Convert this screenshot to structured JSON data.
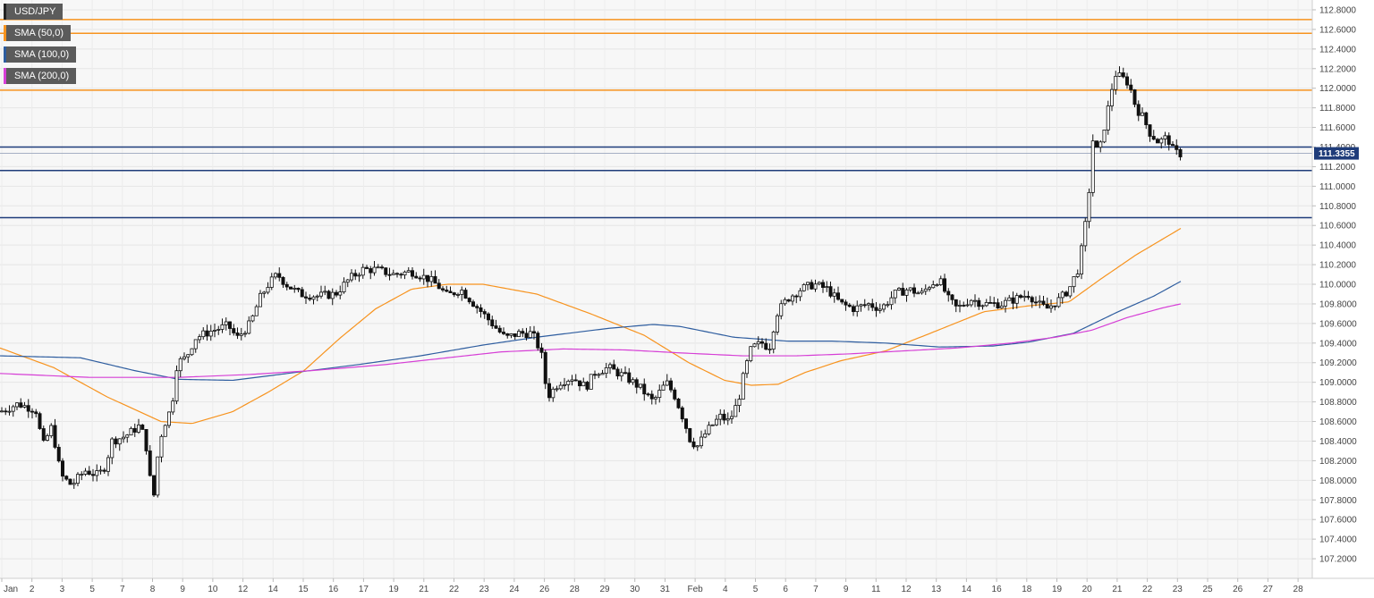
{
  "chart_data": {
    "type": "candlestick",
    "symbol": "USD/JPY",
    "legend": [
      {
        "label": "USD/JPY",
        "color": "#222222"
      },
      {
        "label": "SMA (50,0)",
        "color": "#f7931e"
      },
      {
        "label": "SMA (100,0)",
        "color": "#2e5d9f"
      },
      {
        "label": "SMA (200,0)",
        "color": "#d63fd6"
      }
    ],
    "ylim": [
      107.0,
      112.9
    ],
    "y_ticks": [
      "112.8000",
      "112.6000",
      "112.4000",
      "112.2000",
      "112.0000",
      "111.8000",
      "111.6000",
      "111.4000",
      "111.2000",
      "111.0000",
      "110.8000",
      "110.6000",
      "110.4000",
      "110.2000",
      "110.0000",
      "109.8000",
      "109.6000",
      "109.4000",
      "109.2000",
      "109.0000",
      "108.8000",
      "108.6000",
      "108.4000",
      "108.2000",
      "108.0000",
      "107.8000",
      "107.6000",
      "107.4000",
      "107.2000"
    ],
    "x_ticks": [
      "Jan",
      "2",
      "3",
      "5",
      "7",
      "8",
      "9",
      "10",
      "12",
      "14",
      "15",
      "16",
      "17",
      "19",
      "21",
      "22",
      "23",
      "24",
      "26",
      "28",
      "29",
      "30",
      "31",
      "Feb",
      "4",
      "5",
      "6",
      "7",
      "9",
      "11",
      "12",
      "13",
      "14",
      "16",
      "18",
      "19",
      "20",
      "21",
      "22",
      "23",
      "25",
      "26",
      "27",
      "28"
    ],
    "current_price": "111.3355",
    "current_price_color": "#1f3c7a",
    "horizontal_levels": [
      {
        "value": 112.7,
        "color": "#f7931e"
      },
      {
        "value": 112.56,
        "color": "#f7931e"
      },
      {
        "value": 111.98,
        "color": "#f7931e"
      },
      {
        "value": 111.4,
        "color": "#1f3c7a"
      },
      {
        "value": 111.16,
        "color": "#1f3c7a"
      },
      {
        "value": 110.68,
        "color": "#1f3c7a"
      }
    ],
    "price_path": [
      [
        0,
        108.7
      ],
      [
        20,
        108.78
      ],
      [
        40,
        108.72
      ],
      [
        48,
        108.35
      ],
      [
        58,
        108.55
      ],
      [
        68,
        108.05
      ],
      [
        80,
        107.95
      ],
      [
        95,
        108.1
      ],
      [
        110,
        108.05
      ],
      [
        118,
        108.15
      ],
      [
        125,
        108.4
      ],
      [
        140,
        108.45
      ],
      [
        155,
        108.55
      ],
      [
        162,
        108.45
      ],
      [
        168,
        108.0
      ],
      [
        172,
        107.85
      ],
      [
        178,
        108.4
      ],
      [
        185,
        108.6
      ],
      [
        192,
        108.75
      ],
      [
        198,
        109.2
      ],
      [
        208,
        109.25
      ],
      [
        218,
        109.45
      ],
      [
        235,
        109.52
      ],
      [
        255,
        109.58
      ],
      [
        265,
        109.45
      ],
      [
        280,
        109.6
      ],
      [
        290,
        109.85
      ],
      [
        300,
        110.0
      ],
      [
        310,
        110.1
      ],
      [
        320,
        110.0
      ],
      [
        335,
        109.9
      ],
      [
        355,
        109.88
      ],
      [
        375,
        109.9
      ],
      [
        390,
        110.05
      ],
      [
        405,
        110.15
      ],
      [
        420,
        110.15
      ],
      [
        440,
        110.1
      ],
      [
        460,
        110.13
      ],
      [
        480,
        110.05
      ],
      [
        490,
        109.98
      ],
      [
        500,
        109.88
      ],
      [
        515,
        109.95
      ],
      [
        525,
        109.85
      ],
      [
        540,
        109.7
      ],
      [
        555,
        109.55
      ],
      [
        565,
        109.45
      ],
      [
        580,
        109.5
      ],
      [
        595,
        109.5
      ],
      [
        605,
        109.3
      ],
      [
        612,
        108.85
      ],
      [
        625,
        109.0
      ],
      [
        640,
        109.05
      ],
      [
        655,
        108.95
      ],
      [
        665,
        109.1
      ],
      [
        680,
        109.15
      ],
      [
        700,
        109.05
      ],
      [
        715,
        108.95
      ],
      [
        730,
        108.8
      ],
      [
        745,
        109.0
      ],
      [
        755,
        108.85
      ],
      [
        765,
        108.6
      ],
      [
        772,
        108.4
      ],
      [
        780,
        108.35
      ],
      [
        790,
        108.5
      ],
      [
        805,
        108.65
      ],
      [
        815,
        108.6
      ],
      [
        825,
        108.8
      ],
      [
        832,
        109.1
      ],
      [
        840,
        109.35
      ],
      [
        852,
        109.4
      ],
      [
        860,
        109.35
      ],
      [
        868,
        109.7
      ],
      [
        880,
        109.85
      ],
      [
        895,
        109.95
      ],
      [
        910,
        110.0
      ],
      [
        925,
        109.95
      ],
      [
        940,
        109.8
      ],
      [
        955,
        109.75
      ],
      [
        970,
        109.8
      ],
      [
        985,
        109.75
      ],
      [
        1000,
        109.9
      ],
      [
        1015,
        109.95
      ],
      [
        1030,
        109.9
      ],
      [
        1040,
        110.0
      ],
      [
        1050,
        110.05
      ],
      [
        1060,
        109.85
      ],
      [
        1070,
        109.75
      ],
      [
        1085,
        109.85
      ],
      [
        1100,
        109.8
      ],
      [
        1120,
        109.8
      ],
      [
        1135,
        109.85
      ],
      [
        1150,
        109.9
      ],
      [
        1160,
        109.8
      ],
      [
        1170,
        109.75
      ],
      [
        1185,
        109.85
      ],
      [
        1195,
        109.95
      ],
      [
        1205,
        110.15
      ],
      [
        1212,
        110.5
      ],
      [
        1218,
        111.0
      ],
      [
        1222,
        111.5
      ],
      [
        1228,
        111.3
      ],
      [
        1232,
        111.5
      ],
      [
        1240,
        111.85
      ],
      [
        1246,
        112.15
      ],
      [
        1255,
        112.1
      ],
      [
        1262,
        112.05
      ],
      [
        1270,
        111.8
      ],
      [
        1278,
        111.7
      ],
      [
        1285,
        111.55
      ],
      [
        1295,
        111.45
      ],
      [
        1305,
        111.5
      ],
      [
        1312,
        111.35
      ],
      [
        1320,
        111.33
      ]
    ],
    "sma50_path": [
      [
        0,
        109.35
      ],
      [
        60,
        109.15
      ],
      [
        120,
        108.85
      ],
      [
        180,
        108.6
      ],
      [
        215,
        108.58
      ],
      [
        260,
        108.7
      ],
      [
        300,
        108.9
      ],
      [
        340,
        109.12
      ],
      [
        380,
        109.45
      ],
      [
        420,
        109.75
      ],
      [
        460,
        109.95
      ],
      [
        500,
        110.0
      ],
      [
        540,
        110.0
      ],
      [
        600,
        109.9
      ],
      [
        660,
        109.7
      ],
      [
        720,
        109.48
      ],
      [
        770,
        109.2
      ],
      [
        810,
        109.02
      ],
      [
        840,
        108.97
      ],
      [
        870,
        108.98
      ],
      [
        900,
        109.1
      ],
      [
        940,
        109.22
      ],
      [
        990,
        109.32
      ],
      [
        1040,
        109.5
      ],
      [
        1100,
        109.72
      ],
      [
        1150,
        109.78
      ],
      [
        1195,
        109.82
      ],
      [
        1230,
        110.05
      ],
      [
        1270,
        110.3
      ],
      [
        1320,
        110.57
      ]
    ],
    "sma100_path": [
      [
        0,
        109.27
      ],
      [
        90,
        109.25
      ],
      [
        150,
        109.12
      ],
      [
        200,
        109.03
      ],
      [
        260,
        109.02
      ],
      [
        330,
        109.1
      ],
      [
        400,
        109.18
      ],
      [
        470,
        109.27
      ],
      [
        540,
        109.38
      ],
      [
        600,
        109.46
      ],
      [
        680,
        109.55
      ],
      [
        730,
        109.59
      ],
      [
        760,
        109.57
      ],
      [
        820,
        109.46
      ],
      [
        880,
        109.42
      ],
      [
        930,
        109.42
      ],
      [
        990,
        109.4
      ],
      [
        1050,
        109.36
      ],
      [
        1110,
        109.37
      ],
      [
        1150,
        109.41
      ],
      [
        1200,
        109.5
      ],
      [
        1250,
        109.72
      ],
      [
        1290,
        109.88
      ],
      [
        1320,
        110.03
      ]
    ],
    "sma200_path": [
      [
        0,
        109.09
      ],
      [
        100,
        109.05
      ],
      [
        200,
        109.05
      ],
      [
        280,
        109.08
      ],
      [
        350,
        109.12
      ],
      [
        430,
        109.18
      ],
      [
        500,
        109.25
      ],
      [
        560,
        109.31
      ],
      [
        630,
        109.34
      ],
      [
        700,
        109.33
      ],
      [
        760,
        109.3
      ],
      [
        830,
        109.27
      ],
      [
        890,
        109.27
      ],
      [
        950,
        109.29
      ],
      [
        1010,
        109.32
      ],
      [
        1070,
        109.35
      ],
      [
        1130,
        109.4
      ],
      [
        1180,
        109.46
      ],
      [
        1220,
        109.53
      ],
      [
        1260,
        109.66
      ],
      [
        1300,
        109.76
      ],
      [
        1320,
        109.8
      ]
    ]
  }
}
